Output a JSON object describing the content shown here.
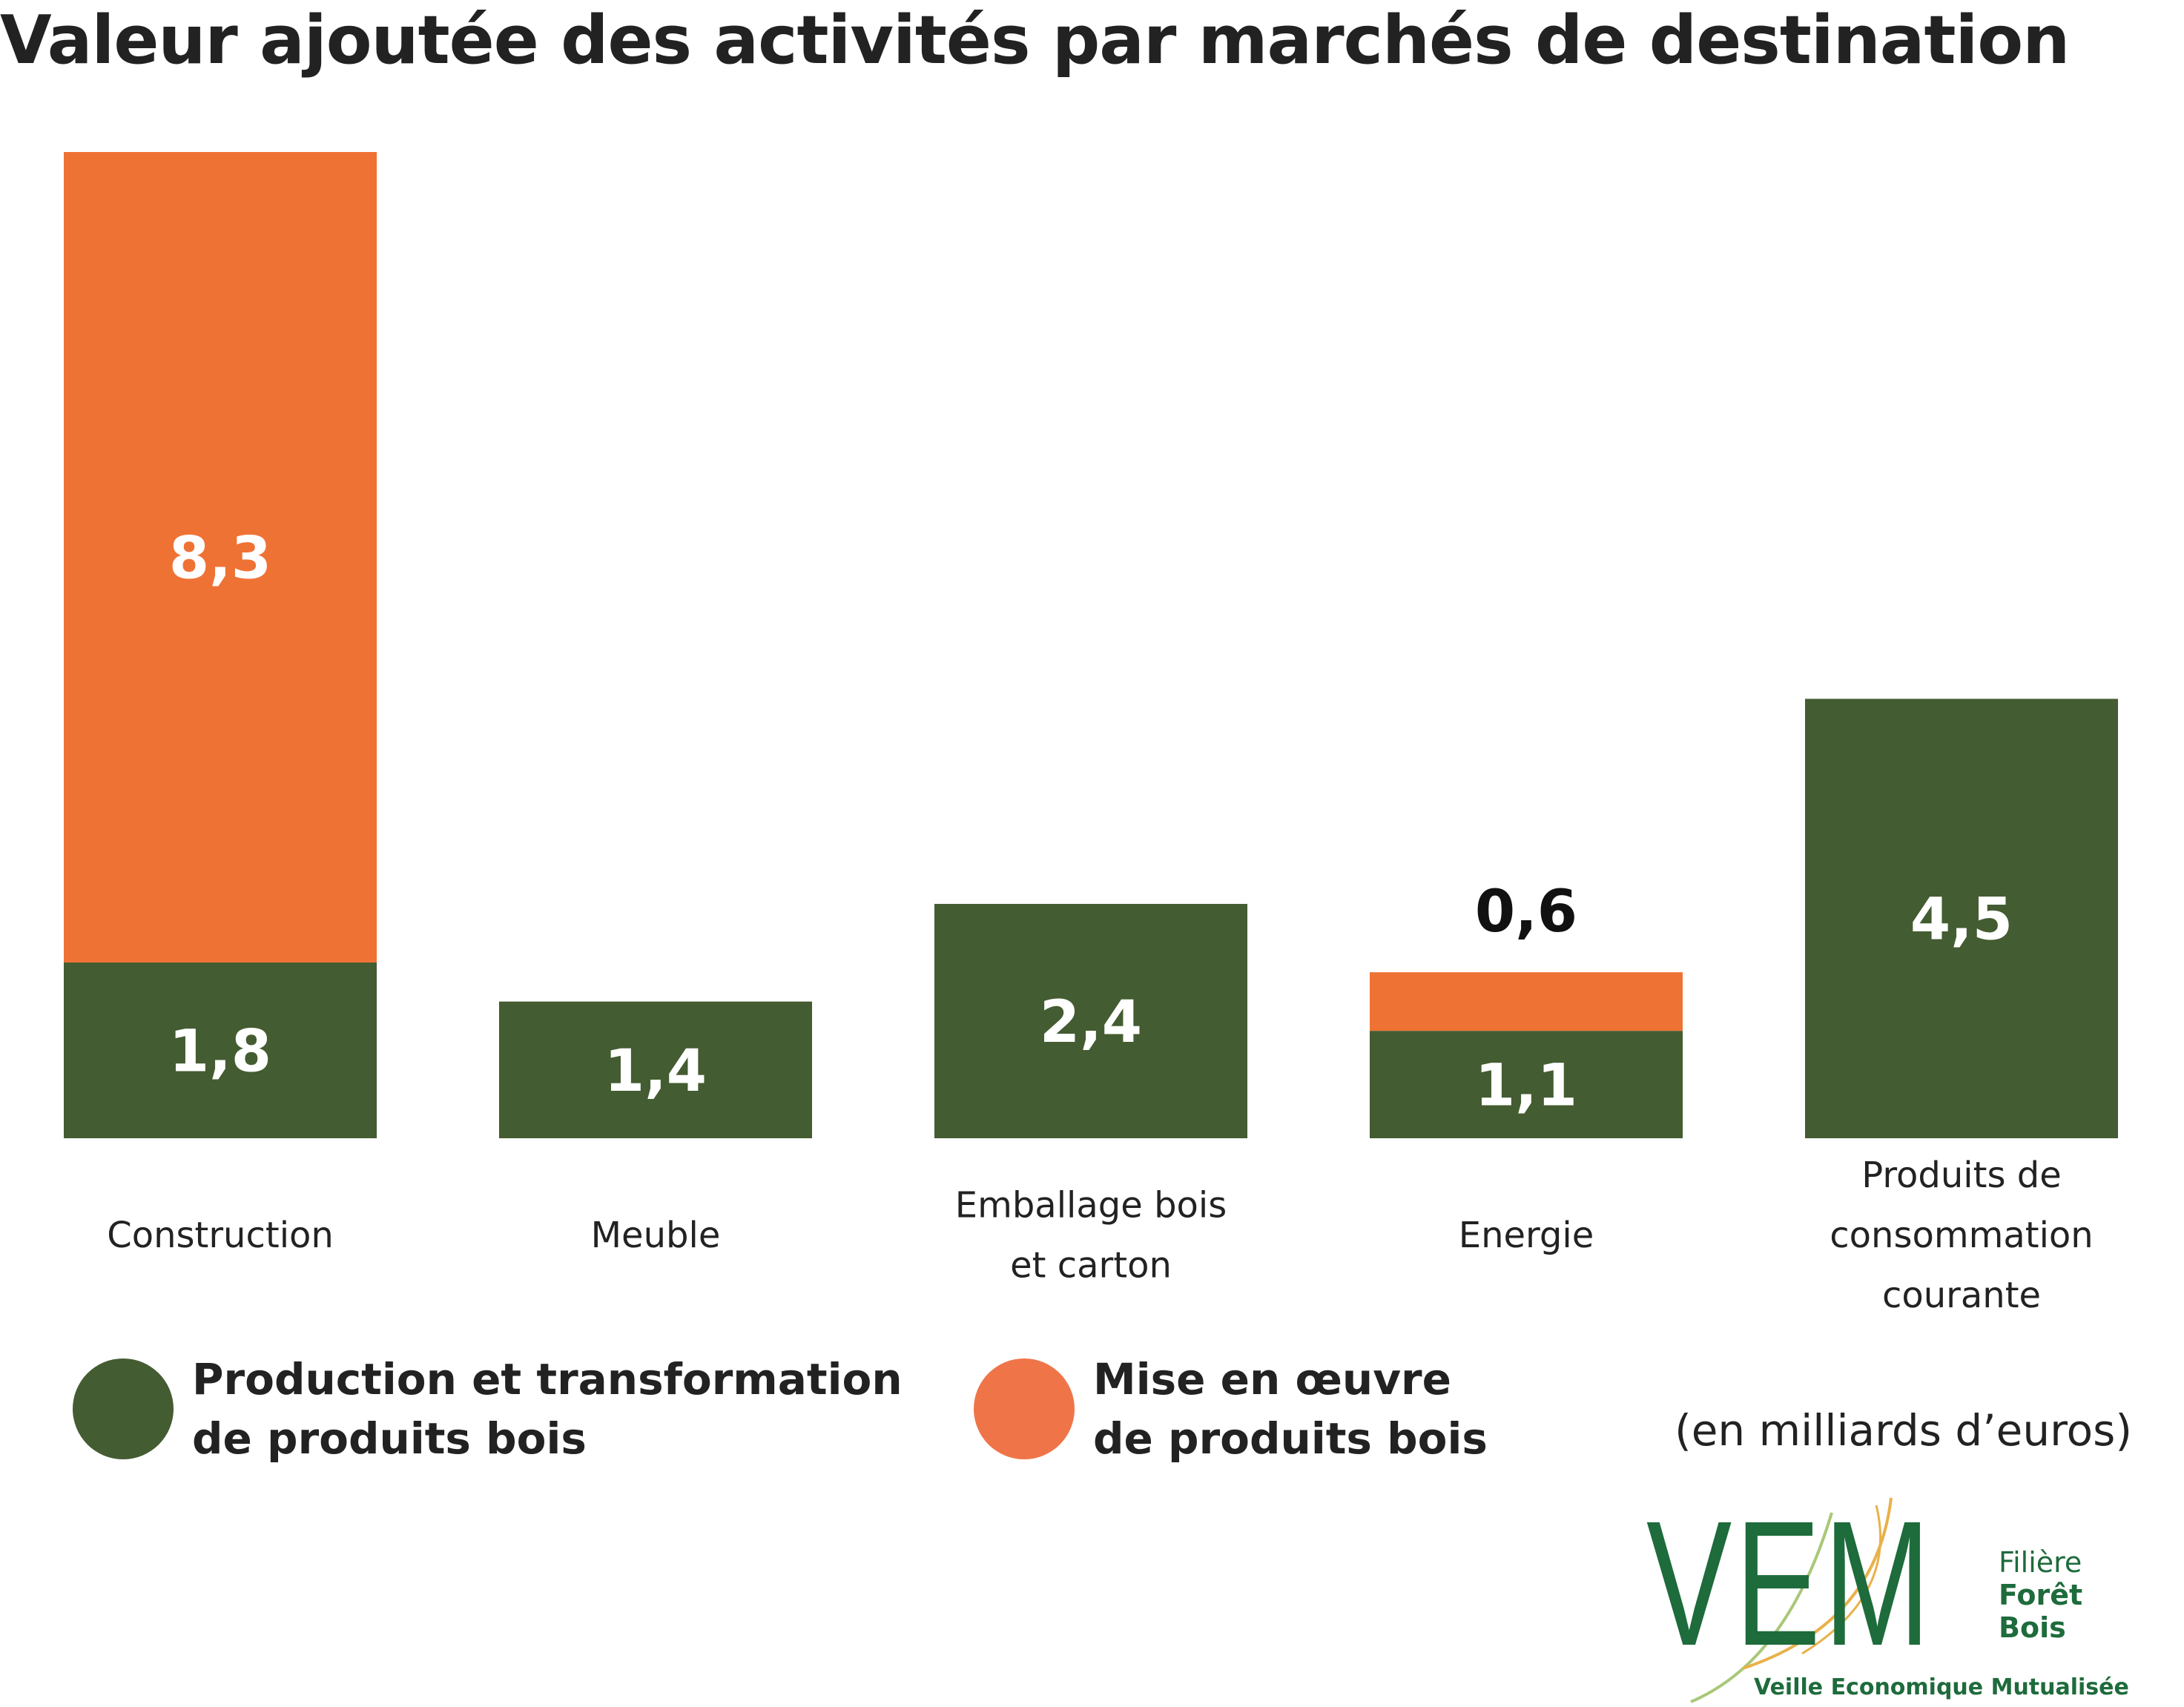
{
  "chart_data": {
    "type": "bar",
    "stacked": true,
    "title": "Valeur ajoutée des activités par marchés de destination",
    "categories": [
      "Construction",
      "Meuble",
      "Emballage bois\net carton",
      "Energie",
      "Produits de\nconsommation\ncourante"
    ],
    "series": [
      {
        "name": "Production et transformation\nde produits bois",
        "color": "#435c31",
        "values": [
          1.8,
          1.4,
          2.4,
          1.1,
          4.5
        ],
        "labels": [
          "1,8",
          "1,4",
          "2,4",
          "1,1",
          "4,5"
        ]
      },
      {
        "name": "Mise en œuvre\nde produits bois",
        "color": "#ef7235",
        "values": [
          8.3,
          0,
          0,
          0.6,
          0
        ],
        "labels": [
          "8,3",
          "",
          "",
          "0,6",
          ""
        ]
      }
    ],
    "ylim": [
      0,
      10.1
    ],
    "grid": false,
    "legend_position": "bottom",
    "unit_note": "(en milliards d’euros)"
  },
  "logo": {
    "letters": "VEM",
    "line1": "Filière",
    "line2": "Forêt",
    "line3": "Bois",
    "tagline": "Veille Economique Mutualisée"
  }
}
